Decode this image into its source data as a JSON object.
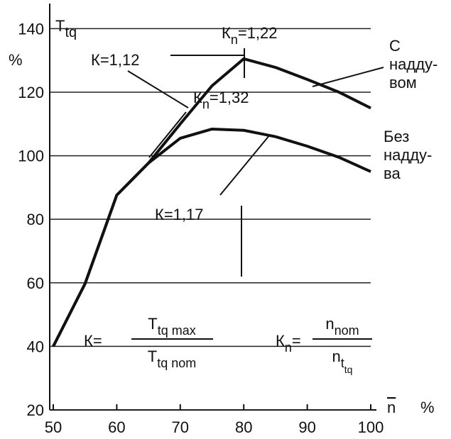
{
  "chart_data": {
    "type": "line",
    "ylabel": [
      {
        "text": "T",
        "level": 0
      },
      {
        "text": "tq",
        "level": 1
      }
    ],
    "yunit": "%",
    "xlabel": [
      {
        "text": "n",
        "level": 0,
        "overline": true
      }
    ],
    "xunit": "%",
    "x": [
      50,
      55,
      60,
      65,
      70,
      75,
      80,
      85,
      90,
      95,
      100
    ],
    "series": [
      {
        "name_lines": [
          "С",
          "надду-",
          "вом"
        ],
        "color": "#111111",
        "values": [
          40,
          59.7,
          87.6,
          97.7,
          110,
          122,
          130.5,
          127.8,
          124,
          120,
          115
        ]
      },
      {
        "name_lines": [
          "Без",
          "надду-",
          "ва"
        ],
        "color": "#111111",
        "values": [
          40,
          59.7,
          87.6,
          97.7,
          105.5,
          108.4,
          108,
          106,
          103,
          99.5,
          95
        ]
      }
    ],
    "xlim": [
      50,
      100
    ],
    "xticks": [
      50,
      60,
      70,
      80,
      90,
      100
    ],
    "ylim": [
      20,
      147
    ],
    "yticks": [
      20,
      40,
      60,
      80,
      100,
      120,
      140
    ],
    "grid": true,
    "annotations": [
      [
        {
          "text": "К=1,12",
          "level": 0
        }
      ],
      [
        {
          "text": "К",
          "level": 0
        },
        {
          "text": "n",
          "level": 1
        },
        {
          "text": "=1,22",
          "level": 0
        }
      ],
      [
        {
          "text": "К",
          "level": 0
        },
        {
          "text": "n",
          "level": 1
        },
        {
          "text": "=1,32",
          "level": 0
        }
      ],
      [
        {
          "text": "К=1,17",
          "level": 0
        }
      ]
    ],
    "formulas": [
      {
        "left": [
          {
            "text": "К=",
            "level": 0
          }
        ],
        "numerator": [
          {
            "text": "T",
            "level": 0
          },
          {
            "text": "tq max",
            "level": 1
          }
        ],
        "denominator": [
          {
            "text": "T",
            "level": 0
          },
          {
            "text": "tq nom",
            "level": 1
          }
        ]
      },
      {
        "left": [
          {
            "text": "К",
            "level": 0
          },
          {
            "text": "n",
            "level": 1
          },
          {
            "text": "=",
            "level": 0
          }
        ],
        "numerator": [
          {
            "text": "n",
            "level": 0
          },
          {
            "text": "nom",
            "level": 1
          }
        ],
        "denominator": [
          {
            "text": "n",
            "level": 0
          },
          {
            "text": "t",
            "level": 1
          },
          {
            "text": "tq",
            "level": 2
          }
        ]
      }
    ]
  }
}
